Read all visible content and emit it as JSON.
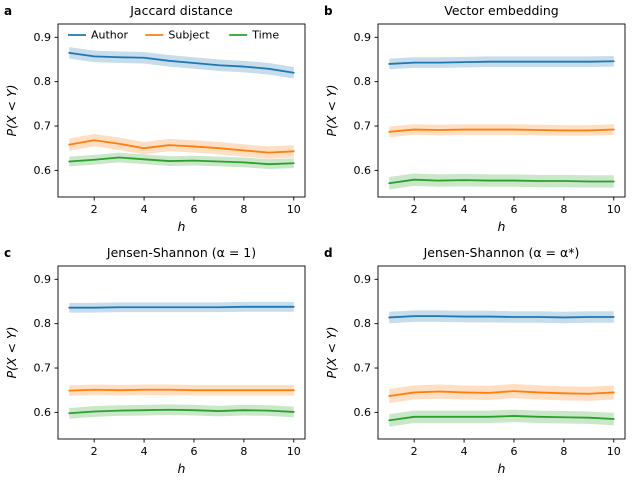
{
  "figure": {
    "background": "#ffffff",
    "text_color": "#000000"
  },
  "chart_data": [
    {
      "id": "a",
      "panel_label": "a",
      "type": "line",
      "title": "Jaccard distance",
      "xlabel": "h",
      "ylabel": "P(X < Y)",
      "x": [
        1,
        2,
        3,
        4,
        5,
        6,
        7,
        8,
        9,
        10
      ],
      "xlim": [
        0.55,
        10.45
      ],
      "ylim": [
        0.54,
        0.93
      ],
      "xticks": [
        2,
        4,
        6,
        8,
        10
      ],
      "yticks": [
        0.6,
        0.7,
        0.8,
        0.9
      ],
      "legend": true,
      "legend_position": "upper center",
      "grid": false,
      "series": [
        {
          "name": "Author",
          "color": "#1f77b4",
          "band": 0.013,
          "values": [
            0.865,
            0.857,
            0.855,
            0.854,
            0.847,
            0.842,
            0.837,
            0.834,
            0.829,
            0.82
          ]
        },
        {
          "name": "Subject",
          "color": "#ff7f0e",
          "band": 0.014,
          "values": [
            0.658,
            0.668,
            0.66,
            0.65,
            0.657,
            0.654,
            0.65,
            0.645,
            0.64,
            0.643
          ]
        },
        {
          "name": "Time",
          "color": "#2ca02c",
          "band": 0.011,
          "values": [
            0.62,
            0.624,
            0.629,
            0.625,
            0.621,
            0.622,
            0.62,
            0.618,
            0.614,
            0.616
          ]
        }
      ]
    },
    {
      "id": "b",
      "panel_label": "b",
      "type": "line",
      "title": "Vector embedding",
      "xlabel": "h",
      "ylabel": "P(X < Y)",
      "x": [
        1,
        2,
        3,
        4,
        5,
        6,
        7,
        8,
        9,
        10
      ],
      "xlim": [
        0.55,
        10.45
      ],
      "ylim": [
        0.54,
        0.93
      ],
      "xticks": [
        2,
        4,
        6,
        8,
        10
      ],
      "yticks": [
        0.6,
        0.7,
        0.8,
        0.9
      ],
      "legend": false,
      "grid": false,
      "series": [
        {
          "name": "Author",
          "color": "#1f77b4",
          "band": 0.012,
          "values": [
            0.84,
            0.843,
            0.843,
            0.844,
            0.845,
            0.845,
            0.845,
            0.845,
            0.845,
            0.846
          ]
        },
        {
          "name": "Subject",
          "color": "#ff7f0e",
          "band": 0.012,
          "values": [
            0.687,
            0.692,
            0.691,
            0.692,
            0.692,
            0.692,
            0.691,
            0.69,
            0.69,
            0.692
          ]
        },
        {
          "name": "Time",
          "color": "#2ca02c",
          "band": 0.014,
          "values": [
            0.571,
            0.579,
            0.577,
            0.578,
            0.577,
            0.577,
            0.576,
            0.576,
            0.575,
            0.575
          ]
        }
      ]
    },
    {
      "id": "c",
      "panel_label": "c",
      "type": "line",
      "title": "Jensen-Shannon (α = 1)",
      "xlabel": "h",
      "ylabel": "P(X < Y)",
      "x": [
        1,
        2,
        3,
        4,
        5,
        6,
        7,
        8,
        9,
        10
      ],
      "xlim": [
        0.55,
        10.45
      ],
      "ylim": [
        0.54,
        0.93
      ],
      "xticks": [
        2,
        4,
        6,
        8,
        10
      ],
      "yticks": [
        0.6,
        0.7,
        0.8,
        0.9
      ],
      "legend": false,
      "grid": false,
      "series": [
        {
          "name": "Author",
          "color": "#1f77b4",
          "band": 0.011,
          "values": [
            0.836,
            0.836,
            0.837,
            0.837,
            0.837,
            0.837,
            0.837,
            0.838,
            0.838,
            0.838
          ]
        },
        {
          "name": "Subject",
          "color": "#ff7f0e",
          "band": 0.012,
          "values": [
            0.649,
            0.651,
            0.65,
            0.651,
            0.651,
            0.65,
            0.65,
            0.65,
            0.65,
            0.65
          ]
        },
        {
          "name": "Time",
          "color": "#2ca02c",
          "band": 0.012,
          "values": [
            0.598,
            0.602,
            0.604,
            0.605,
            0.606,
            0.605,
            0.603,
            0.605,
            0.604,
            0.601
          ]
        }
      ]
    },
    {
      "id": "d",
      "panel_label": "d",
      "type": "line",
      "title": "Jensen-Shannon (α = α*)",
      "xlabel": "h",
      "ylabel": "P(X < Y)",
      "x": [
        1,
        2,
        3,
        4,
        5,
        6,
        7,
        8,
        9,
        10
      ],
      "xlim": [
        0.55,
        10.45
      ],
      "ylim": [
        0.54,
        0.93
      ],
      "xticks": [
        2,
        4,
        6,
        8,
        10
      ],
      "yticks": [
        0.6,
        0.7,
        0.8,
        0.9
      ],
      "legend": false,
      "grid": false,
      "series": [
        {
          "name": "Author",
          "color": "#1f77b4",
          "band": 0.013,
          "values": [
            0.814,
            0.817,
            0.817,
            0.816,
            0.816,
            0.815,
            0.815,
            0.814,
            0.815,
            0.815
          ]
        },
        {
          "name": "Subject",
          "color": "#ff7f0e",
          "band": 0.016,
          "values": [
            0.637,
            0.645,
            0.647,
            0.645,
            0.644,
            0.648,
            0.645,
            0.643,
            0.642,
            0.645
          ]
        },
        {
          "name": "Time",
          "color": "#2ca02c",
          "band": 0.014,
          "values": [
            0.582,
            0.59,
            0.59,
            0.59,
            0.59,
            0.592,
            0.59,
            0.589,
            0.588,
            0.585
          ]
        }
      ]
    }
  ]
}
